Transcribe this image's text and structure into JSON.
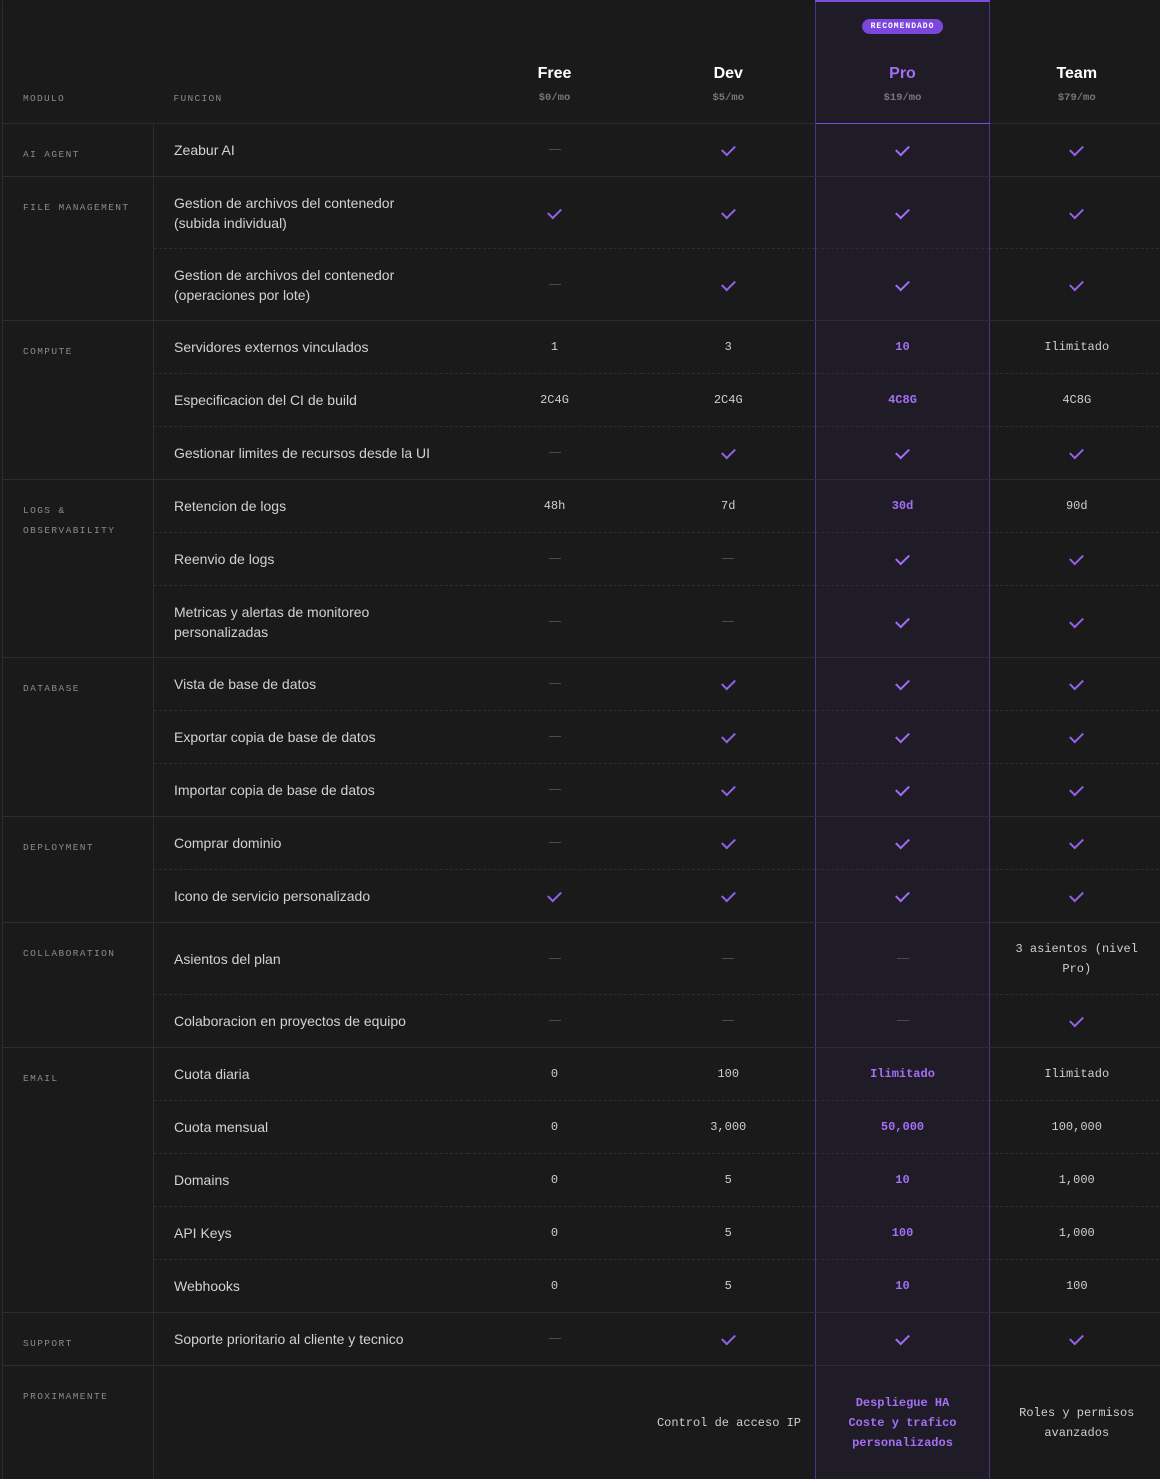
{
  "header": {
    "module_label": "MODULO",
    "function_label": "FUNCION",
    "plans": [
      {
        "name": "Free",
        "price": "$0/mo"
      },
      {
        "name": "Dev",
        "price": "$5/mo"
      },
      {
        "name": "Pro",
        "price": "$19/mo",
        "badge": "RECOMENDADO"
      },
      {
        "name": "Team",
        "price": "$79/mo"
      }
    ]
  },
  "colors": {
    "accent": "#7c45dc",
    "check": "#9560ea",
    "pro_bg": "#1f1c28",
    "background": "#1a1a1b"
  },
  "modules": [
    {
      "name": "AI AGENT",
      "rows": [
        {
          "function": "Zeabur AI",
          "values": [
            "dash",
            "check",
            "check",
            "check"
          ]
        }
      ]
    },
    {
      "name": "FILE MANAGEMENT",
      "rows": [
        {
          "function": "Gestion de archivos del contenedor\n(subida individual)",
          "values": [
            "check",
            "check",
            "check",
            "check"
          ]
        },
        {
          "function": "Gestion de archivos del contenedor\n(operaciones por lote)",
          "values": [
            "dash",
            "check",
            "check",
            "check"
          ]
        }
      ]
    },
    {
      "name": "COMPUTE",
      "rows": [
        {
          "function": "Servidores externos vinculados",
          "values": [
            "1",
            "3",
            "10",
            "Ilimitado"
          ]
        },
        {
          "function": "Especificacion del CI de build",
          "values": [
            "2C4G",
            "2C4G",
            "4C8G",
            "4C8G"
          ]
        },
        {
          "function": "Gestionar limites de recursos desde la UI",
          "values": [
            "dash",
            "check",
            "check",
            "check"
          ]
        }
      ]
    },
    {
      "name": "LOGS &\nOBSERVABILITY",
      "rows": [
        {
          "function": "Retencion de logs",
          "values": [
            "48h",
            "7d",
            "30d",
            "90d"
          ]
        },
        {
          "function": "Reenvio de logs",
          "values": [
            "dash",
            "dash",
            "check",
            "check"
          ]
        },
        {
          "function": "Metricas y alertas de monitoreo\npersonalizadas",
          "values": [
            "dash",
            "dash",
            "check",
            "check"
          ]
        }
      ]
    },
    {
      "name": "DATABASE",
      "rows": [
        {
          "function": "Vista de base de datos",
          "values": [
            "dash",
            "check",
            "check",
            "check"
          ]
        },
        {
          "function": "Exportar copia de base de datos",
          "values": [
            "dash",
            "check",
            "check",
            "check"
          ]
        },
        {
          "function": "Importar copia de base de datos",
          "values": [
            "dash",
            "check",
            "check",
            "check"
          ]
        }
      ]
    },
    {
      "name": "DEPLOYMENT",
      "rows": [
        {
          "function": "Comprar dominio",
          "values": [
            "dash",
            "check",
            "check",
            "check"
          ]
        },
        {
          "function": "Icono de servicio personalizado",
          "values": [
            "check",
            "check",
            "check",
            "check"
          ]
        }
      ]
    },
    {
      "name": "COLLABORATION",
      "rows": [
        {
          "function": "Asientos del plan",
          "values": [
            "dash",
            "dash",
            "dash",
            "3 asientos (nivel\nPro)"
          ]
        },
        {
          "function": "Colaboracion en proyectos de equipo",
          "values": [
            "dash",
            "dash",
            "dash",
            "check"
          ]
        }
      ]
    },
    {
      "name": "EMAIL",
      "rows": [
        {
          "function": "Cuota diaria",
          "values": [
            "0",
            "100",
            "Ilimitado",
            "Ilimitado"
          ]
        },
        {
          "function": "Cuota mensual",
          "values": [
            "0",
            "3,000",
            "50,000",
            "100,000"
          ]
        },
        {
          "function": "Domains",
          "values": [
            "0",
            "5",
            "10",
            "1,000"
          ]
        },
        {
          "function": "API Keys",
          "values": [
            "0",
            "5",
            "100",
            "1,000"
          ]
        },
        {
          "function": "Webhooks",
          "values": [
            "0",
            "5",
            "10",
            "100"
          ]
        }
      ]
    },
    {
      "name": "SUPPORT",
      "rows": [
        {
          "function": "Soporte prioritario al cliente y tecnico",
          "values": [
            "dash",
            "check",
            "check",
            "check"
          ]
        }
      ]
    }
  ],
  "upcoming": {
    "name": "PROXIMAMENTE",
    "dev": "Control de acceso IP",
    "pro": "Despliegue HA\nCoste y trafico\npersonalizados",
    "team": "Roles y permisos\navanzados"
  }
}
